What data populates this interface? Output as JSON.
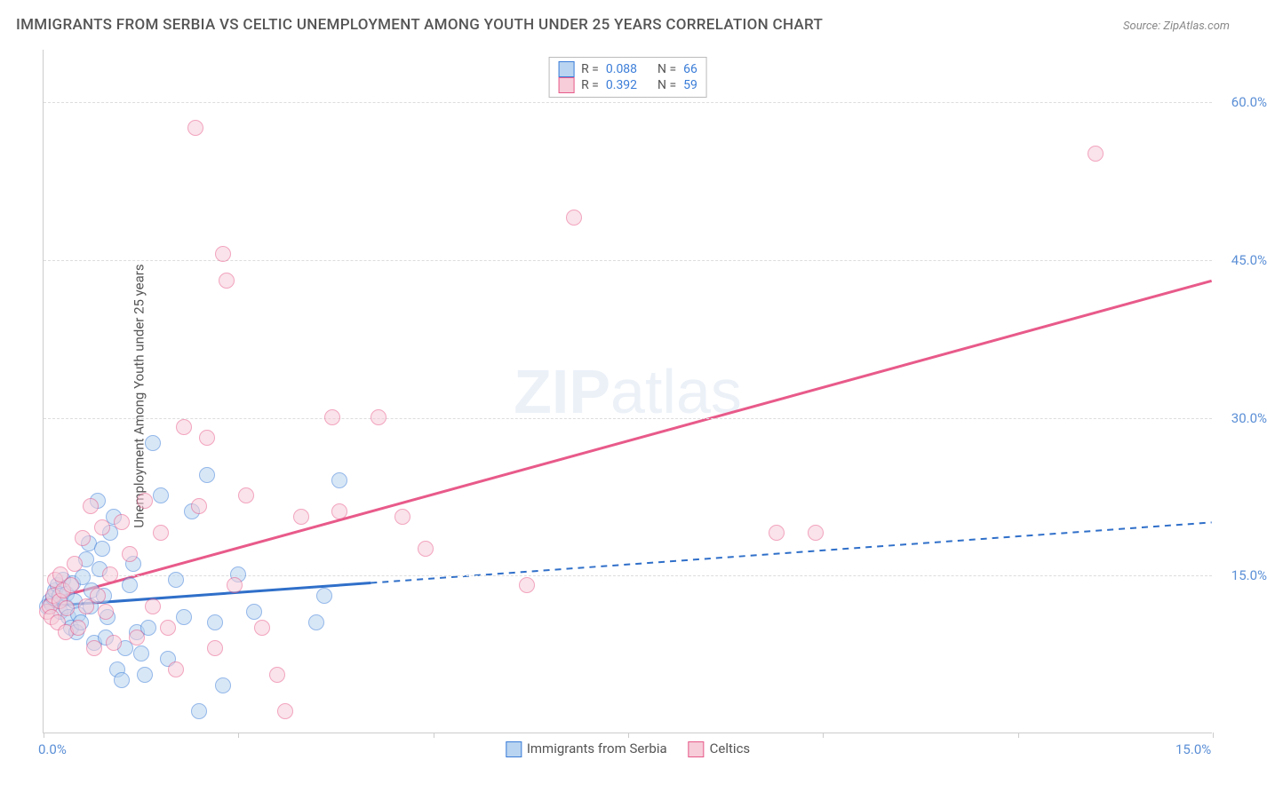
{
  "title": "IMMIGRANTS FROM SERBIA VS CELTIC UNEMPLOYMENT AMONG YOUTH UNDER 25 YEARS CORRELATION CHART",
  "source": "Source: ZipAtlas.com",
  "ylabel": "Unemployment Among Youth under 25 years",
  "watermark_a": "ZIP",
  "watermark_b": "atlas",
  "chart": {
    "type": "scatter",
    "xlim": [
      0,
      15
    ],
    "ylim": [
      0,
      65
    ],
    "ytick_step": 15,
    "yticks": [
      15,
      30,
      45,
      60
    ],
    "ytick_labels": [
      "15.0%",
      "30.0%",
      "45.0%",
      "60.0%"
    ],
    "xticks": [
      0,
      2.5,
      5,
      7.5,
      10,
      12.5,
      15
    ],
    "xtick_labels_shown": {
      "0": "0.0%",
      "15": "15.0%"
    },
    "background_color": "#ffffff",
    "grid_color": "#e5e5e5",
    "point_radius": 9,
    "point_border_width": 1.5,
    "point_opacity": 0.55,
    "series": [
      {
        "id": "serbia",
        "label": "Immigrants from Serbia",
        "fill": "#b9d4f0",
        "stroke": "#3b7dd8",
        "R": "0.088",
        "N": "66",
        "trend": {
          "x1": 0,
          "y1": 12.0,
          "x2": 15,
          "y2": 20.0,
          "solid_until_x": 4.2,
          "color": "#2f6fc9",
          "width": 3,
          "dash": "7,6"
        },
        "points": [
          [
            0.05,
            12.0
          ],
          [
            0.08,
            12.5
          ],
          [
            0.1,
            12.2
          ],
          [
            0.12,
            12.8
          ],
          [
            0.15,
            13.5
          ],
          [
            0.18,
            14.0
          ],
          [
            0.2,
            13.0
          ],
          [
            0.22,
            11.5
          ],
          [
            0.25,
            14.5
          ],
          [
            0.28,
            12.0
          ],
          [
            0.3,
            13.2
          ],
          [
            0.32,
            11.0
          ],
          [
            0.35,
            10.0
          ],
          [
            0.38,
            14.2
          ],
          [
            0.4,
            12.5
          ],
          [
            0.42,
            9.5
          ],
          [
            0.45,
            11.2
          ],
          [
            0.48,
            10.5
          ],
          [
            0.5,
            14.8
          ],
          [
            0.55,
            16.5
          ],
          [
            0.58,
            18.0
          ],
          [
            0.6,
            12.0
          ],
          [
            0.62,
            13.5
          ],
          [
            0.65,
            8.5
          ],
          [
            0.7,
            22.0
          ],
          [
            0.72,
            15.5
          ],
          [
            0.75,
            17.5
          ],
          [
            0.78,
            13.0
          ],
          [
            0.8,
            9.0
          ],
          [
            0.82,
            11.0
          ],
          [
            0.85,
            19.0
          ],
          [
            0.9,
            20.5
          ],
          [
            0.95,
            6.0
          ],
          [
            1.0,
            5.0
          ],
          [
            1.05,
            8.0
          ],
          [
            1.1,
            14.0
          ],
          [
            1.15,
            16.0
          ],
          [
            1.2,
            9.5
          ],
          [
            1.25,
            7.5
          ],
          [
            1.3,
            5.5
          ],
          [
            1.35,
            10.0
          ],
          [
            1.4,
            27.5
          ],
          [
            1.5,
            22.5
          ],
          [
            1.6,
            7.0
          ],
          [
            1.7,
            14.5
          ],
          [
            1.8,
            11.0
          ],
          [
            1.9,
            21.0
          ],
          [
            2.0,
            2.0
          ],
          [
            2.1,
            24.5
          ],
          [
            2.2,
            10.5
          ],
          [
            2.3,
            4.5
          ],
          [
            2.5,
            15.0
          ],
          [
            2.7,
            11.5
          ],
          [
            3.5,
            10.5
          ],
          [
            3.6,
            13.0
          ],
          [
            3.8,
            24.0
          ]
        ]
      },
      {
        "id": "celtics",
        "label": "Celtics",
        "fill": "#f6cdd9",
        "stroke": "#e85a8a",
        "R": "0.392",
        "N": "59",
        "trend": {
          "x1": 0,
          "y1": 12.5,
          "x2": 15,
          "y2": 43.0,
          "solid_until_x": 15,
          "color": "#e85a8a",
          "width": 3,
          "dash": null
        },
        "points": [
          [
            0.05,
            11.5
          ],
          [
            0.08,
            12.0
          ],
          [
            0.1,
            11.0
          ],
          [
            0.12,
            13.0
          ],
          [
            0.15,
            14.5
          ],
          [
            0.18,
            10.5
          ],
          [
            0.2,
            12.5
          ],
          [
            0.22,
            15.0
          ],
          [
            0.25,
            13.5
          ],
          [
            0.28,
            9.5
          ],
          [
            0.3,
            11.8
          ],
          [
            0.35,
            14.0
          ],
          [
            0.4,
            16.0
          ],
          [
            0.45,
            10.0
          ],
          [
            0.5,
            18.5
          ],
          [
            0.55,
            12.0
          ],
          [
            0.6,
            21.5
          ],
          [
            0.65,
            8.0
          ],
          [
            0.7,
            13.0
          ],
          [
            0.75,
            19.5
          ],
          [
            0.8,
            11.5
          ],
          [
            0.85,
            15.0
          ],
          [
            0.9,
            8.5
          ],
          [
            1.0,
            20.0
          ],
          [
            1.1,
            17.0
          ],
          [
            1.2,
            9.0
          ],
          [
            1.3,
            22.0
          ],
          [
            1.4,
            12.0
          ],
          [
            1.5,
            19.0
          ],
          [
            1.6,
            10.0
          ],
          [
            1.7,
            6.0
          ],
          [
            1.8,
            29.0
          ],
          [
            1.95,
            57.5
          ],
          [
            2.0,
            21.5
          ],
          [
            2.1,
            28.0
          ],
          [
            2.2,
            8.0
          ],
          [
            2.3,
            45.5
          ],
          [
            2.35,
            43.0
          ],
          [
            2.45,
            14.0
          ],
          [
            2.6,
            22.5
          ],
          [
            2.8,
            10.0
          ],
          [
            3.0,
            5.5
          ],
          [
            3.1,
            2.0
          ],
          [
            3.3,
            20.5
          ],
          [
            3.7,
            30.0
          ],
          [
            3.8,
            21.0
          ],
          [
            4.3,
            30.0
          ],
          [
            4.6,
            20.5
          ],
          [
            4.9,
            17.5
          ],
          [
            6.2,
            14.0
          ],
          [
            6.8,
            49.0
          ],
          [
            9.4,
            19.0
          ],
          [
            9.9,
            19.0
          ],
          [
            13.5,
            55.0
          ]
        ]
      }
    ],
    "legend_top": {
      "r_label": "R =",
      "n_label": "N =",
      "label_color": "#555",
      "value_color": "#3b7dd8"
    }
  }
}
